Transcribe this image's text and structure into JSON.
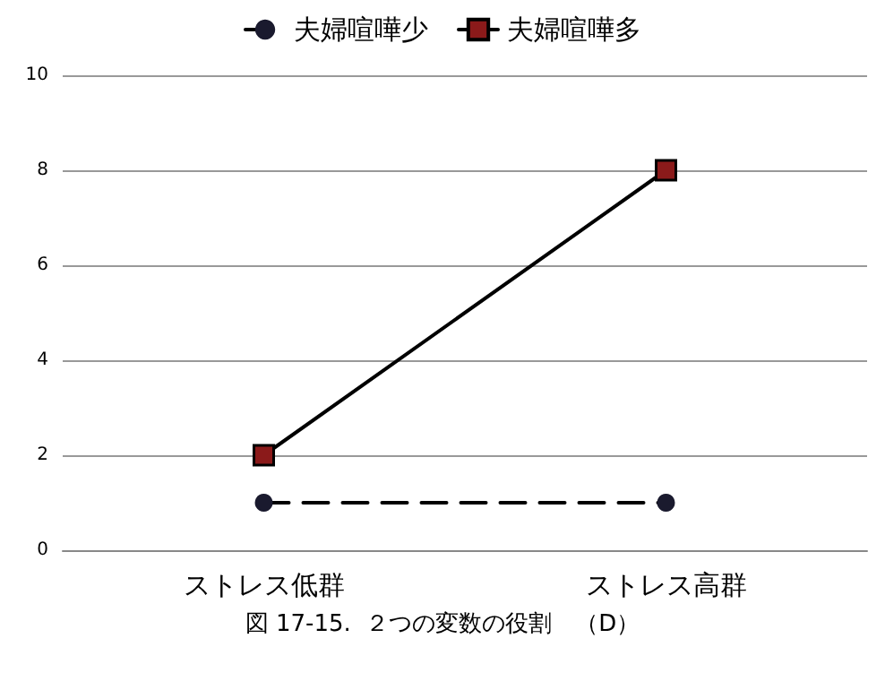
{
  "chart_data": {
    "type": "line",
    "categories": [
      "ストレス低群",
      "ストレス高群"
    ],
    "series": [
      {
        "name": "夫婦喧嘩少",
        "color": "#1a1a2e",
        "values": [
          1,
          1
        ],
        "marker": "circle",
        "line_style": "dashed"
      },
      {
        "name": "夫婦喧嘩多",
        "color": "#8b1a1a",
        "values": [
          2,
          8
        ],
        "marker": "square",
        "line_style": "solid"
      }
    ],
    "ylim": [
      0,
      10
    ],
    "yticks": [
      0,
      2,
      4,
      6,
      8,
      10
    ],
    "grid": "y",
    "legend": "top",
    "annotations": [
      "図 17-15.  ２つの変数の役割　（D）"
    ]
  }
}
